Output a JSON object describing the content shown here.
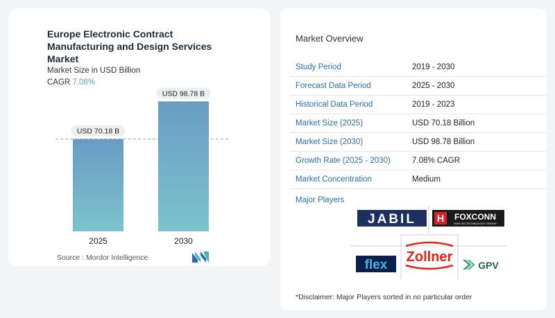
{
  "chart": {
    "title": "Europe Electronic Contract Manufacturing and Design Services Market",
    "subtitle": "Market Size in USD Billion",
    "cagr_label": "CAGR",
    "cagr_value": "7.08%",
    "source": "Source :  Mordor Intelligence"
  },
  "chart_data": {
    "type": "bar",
    "title": "Europe Electronic Contract Manufacturing and Design Services Market",
    "subtitle": "Market Size in USD Billion",
    "categories": [
      "2025",
      "2030"
    ],
    "values": [
      70.18,
      98.78
    ],
    "data_labels": [
      "USD 70.18 B",
      "USD 98.78 B"
    ],
    "ylim": [
      0,
      120
    ],
    "grid": false,
    "reference_line": 70.18,
    "colors": {
      "bar_top": "#6a9cc4",
      "bar_bottom": "#7cc3cb"
    }
  },
  "overview": {
    "title": "Market Overview",
    "rows": [
      {
        "key": "Study Period",
        "value": "2019 - 2030"
      },
      {
        "key": "Forecast Data Period",
        "value": "2025 - 2030"
      },
      {
        "key": "Historical Data Period",
        "value": "2019 - 2023"
      },
      {
        "key": "Market Size (2025)",
        "value": "USD 70.18 Billion"
      },
      {
        "key": "Market Size (2030)",
        "value": "USD 98.78 Billion"
      },
      {
        "key": "Growth Rate (2025 - 2030)",
        "value": "7.08% CAGR"
      },
      {
        "key": "Market Concentration",
        "value": "Medium"
      }
    ],
    "players_title": "Major Players",
    "players": [
      {
        "name": "JABIL",
        "icon": "jabil-logo"
      },
      {
        "name": "FOXCONN",
        "tagline": "HON HAI TECHNOLOGY GROUP",
        "icon": "foxconn-logo"
      },
      {
        "name": "flex",
        "icon": "flex-logo"
      },
      {
        "name": "Zollner",
        "icon": "zollner-logo"
      },
      {
        "name": "GPV",
        "icon": "gpv-logo"
      }
    ],
    "disclaimer": "*Disclaimer: Major Players sorted in no particular order"
  }
}
